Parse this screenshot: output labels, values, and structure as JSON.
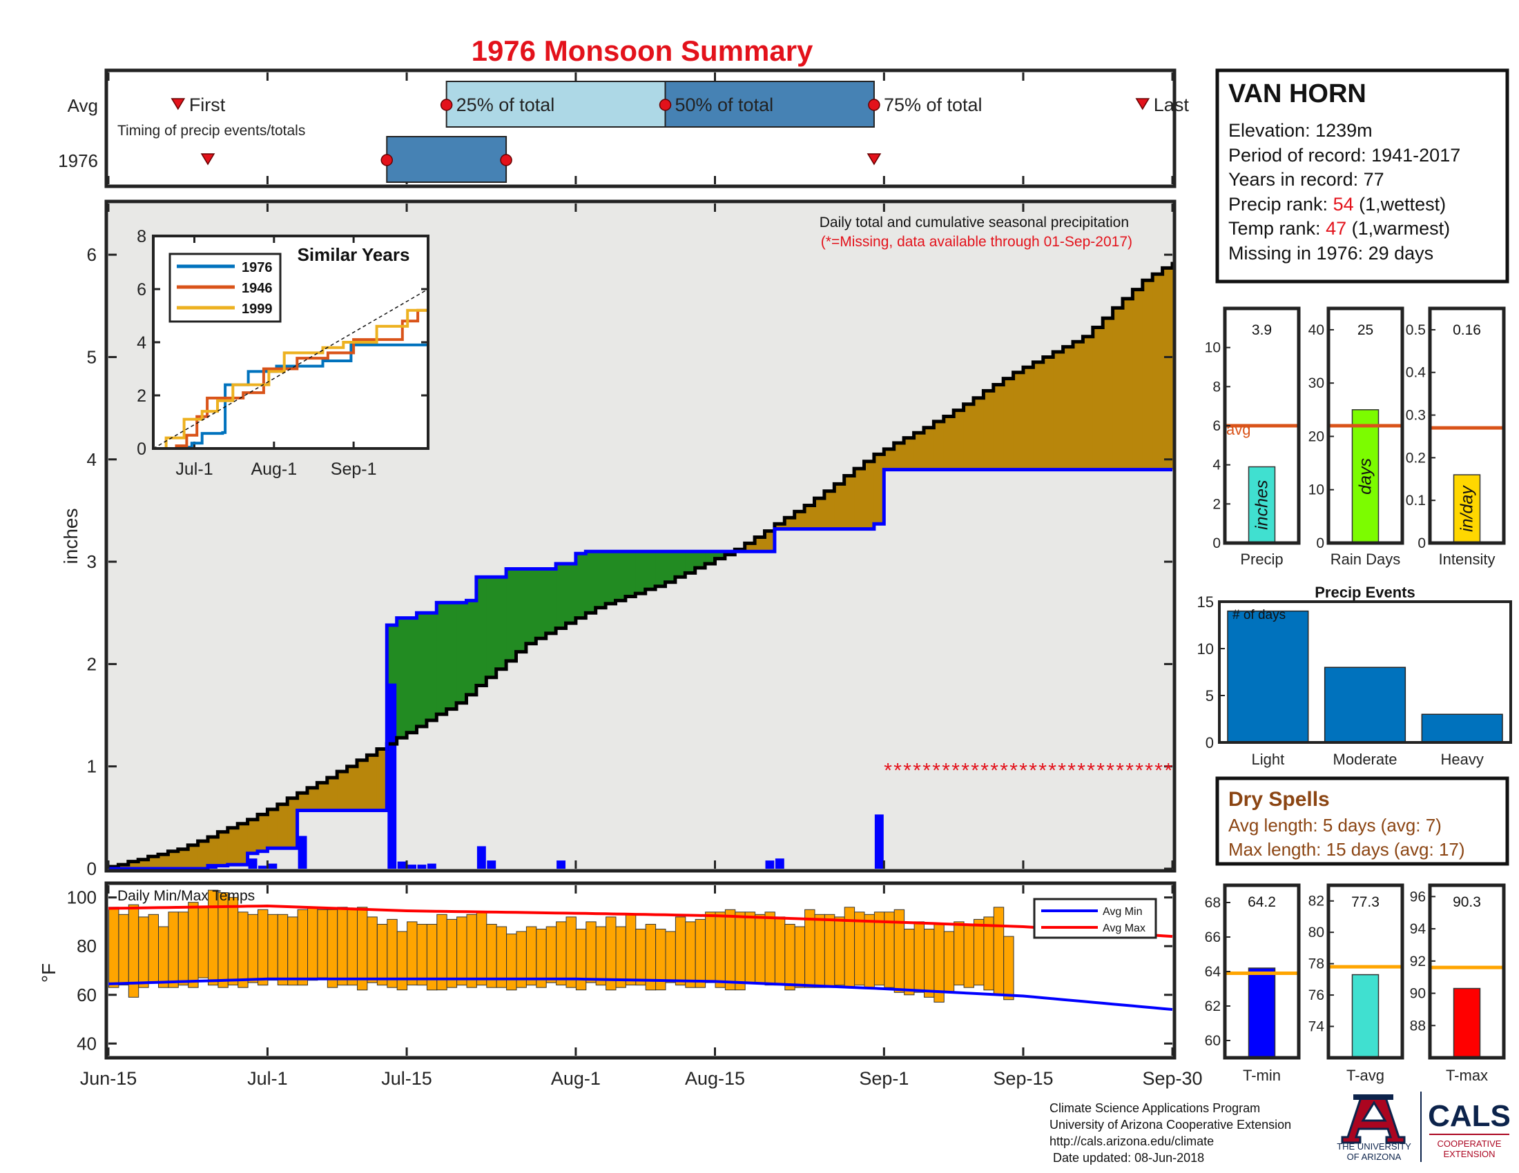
{
  "title": "1976 Monsoon Summary",
  "colors": {
    "title": "#e3121b",
    "frame": "#222222",
    "event_marker": "#e3121b",
    "box_avg_light": "#add8e6",
    "box_dark": "#4682b4",
    "cum_current": "#000000",
    "cum_avg": "#0000ff",
    "above_fill": "#b8860b",
    "below_fill": "#228b22",
    "base_fill": "#e8e8e6",
    "daily_bar": "#0000ff",
    "missing": "#e3121b",
    "temp_bar": "#ffa500",
    "avg_min": "#0000ff",
    "avg_max": "#ff0000",
    "dry_spell": "#8b4513",
    "avg_line": "#d95319",
    "series_1976": "#0072bd",
    "series_1946": "#d95319",
    "series_1999": "#edb120",
    "precip_bar": "#40e0d0",
    "rain_days_bar": "#7cfc00",
    "intensity_bar": "#ffd700",
    "events_bar": "#0072bd",
    "tmin_bar": "#0000ff",
    "tavg_bar": "#40e0d0",
    "tmax_bar": "#ff0000",
    "temp_avg_line": "#ffa500",
    "ua_red": "#ab0520",
    "ua_navy": "#0c234b"
  },
  "timing": {
    "label": "Timing of precip events/totals",
    "row_avg": "Avg",
    "row_year": "1976",
    "first_label": "First",
    "p25_label": "25% of total",
    "p50_label": "50% of total",
    "p75_label": "75% of total",
    "last_label": "Last",
    "avg": {
      "first": "2017-06-22",
      "p25": "2017-07-19",
      "p50": "2017-08-10",
      "p75": "2017-08-31",
      "last": "2017-09-27"
    },
    "year": {
      "first": "2017-06-25",
      "p25": "2017-07-13",
      "p50": "2017-07-25",
      "last": "2017-08-31"
    }
  },
  "main": {
    "ylabel": "inches",
    "note1": "Daily total and cumulative seasonal precipitation",
    "note2": "(*=Missing, data available through 01-Sep-2017)",
    "missing_marker": "******************************"
  },
  "inset": {
    "title": "Similar Years",
    "legend": [
      "1976",
      "1946",
      "1999"
    ]
  },
  "temps": {
    "title": "Daily Min/Max Temps",
    "ylabel": "°F",
    "legend_min": "Avg Min",
    "legend_max": "Avg Max"
  },
  "station": {
    "name": "VAN HORN",
    "elevation_label": "Elevation: ",
    "elevation": "1239m",
    "period_label": "Period of record: ",
    "period": "1941-2017",
    "years_label": "Years in record: ",
    "years": "77",
    "precip_rank_label": "Precip rank: ",
    "precip_rank": "54",
    "precip_rank_note": " (1,wettest)",
    "temp_rank_label": "Temp rank: ",
    "temp_rank": "47",
    "temp_rank_note": " (1,warmest)",
    "missing_label": "Missing in 1976: ",
    "missing": "29 days"
  },
  "mini_precip": {
    "avg_label": "avg",
    "panels": [
      {
        "label": "Precip",
        "unit": "inches",
        "value_text": "3.9",
        "ylim": [
          0,
          12
        ],
        "ticks": [
          "0",
          "2",
          "4",
          "6",
          "8",
          "10"
        ],
        "tick_vals": [
          0,
          2,
          4,
          6,
          8,
          10
        ],
        "avg": 6
      },
      {
        "label": "Rain Days",
        "unit": "days",
        "value_text": "25",
        "ylim": [
          0,
          44
        ],
        "ticks": [
          "0",
          "10",
          "20",
          "30",
          "40"
        ],
        "tick_vals": [
          0,
          10,
          20,
          30,
          40
        ],
        "avg": 22
      },
      {
        "label": "Intensity",
        "unit": "in/day",
        "value_text": "0.16",
        "ylim": [
          0,
          0.55
        ],
        "ticks": [
          "0",
          "0.1",
          "0.2",
          "0.3",
          "0.4",
          "0.5"
        ],
        "tick_vals": [
          0,
          0.1,
          0.2,
          0.3,
          0.4,
          0.5
        ],
        "avg": 0.27
      }
    ]
  },
  "precip_events": {
    "title": "Precip Events",
    "ylabel": "# of days",
    "ticks": [
      "0",
      "5",
      "10",
      "15"
    ]
  },
  "dry_spells": {
    "title": "Dry Spells",
    "avg_length": "Avg length: 5 days (avg: 7)",
    "max_length": "Max length: 15 days (avg: 17)"
  },
  "mini_temps": {
    "panels": [
      {
        "label": "T-min",
        "value_text": "64.2",
        "ylim": [
          59,
          69
        ],
        "ticks": [
          "60",
          "62",
          "64",
          "66",
          "68"
        ],
        "tick_vals": [
          60,
          62,
          64,
          66,
          68
        ],
        "avg": 63.9
      },
      {
        "label": "T-avg",
        "value_text": "77.3",
        "ylim": [
          72,
          83
        ],
        "ticks": [
          "74",
          "76",
          "78",
          "80",
          "82"
        ],
        "tick_vals": [
          74,
          76,
          78,
          80,
          82
        ],
        "avg": 77.8
      },
      {
        "label": "T-max",
        "value_text": "90.3",
        "ylim": [
          86,
          96.7
        ],
        "ticks": [
          "88",
          "90",
          "92",
          "94",
          "96"
        ],
        "tick_vals": [
          88,
          90,
          92,
          94,
          96
        ],
        "avg": 91.6
      }
    ]
  },
  "footer": {
    "line1": "Climate Science Applications Program",
    "line2": "University of Arizona Cooperative Extension",
    "line3": "http://cals.arizona.edu/climate",
    "line4": " Date updated: 08-Jun-2018"
  },
  "logo": {
    "ua_line1": "THE UNIVERSITY",
    "ua_line2": "OF ARIZONA",
    "cals": "CALS",
    "coop1": "COOPERATIVE",
    "coop2": "EXTENSION"
  },
  "chart_data": [
    {
      "type": "area",
      "title": "",
      "xlabel": "",
      "ylabel": "inches",
      "x_ticks": [
        "Jun-15",
        "Jul-1",
        "Jul-15",
        "Aug-1",
        "Aug-15",
        "Sep-1",
        "Sep-15",
        "Sep-30"
      ],
      "x_range": [
        "2017-06-15",
        "2017-09-30"
      ],
      "ylim": [
        0,
        6.5
      ],
      "y_ticks": [
        0,
        1,
        2,
        3,
        4,
        5,
        6
      ],
      "series": [
        {
          "name": "cumulative avg",
          "x": [
            "2017-06-15",
            "2017-06-22",
            "2017-06-29",
            "2017-07-06",
            "2017-07-13",
            "2017-07-20",
            "2017-07-27",
            "2017-08-03",
            "2017-08-10",
            "2017-08-17",
            "2017-08-24",
            "2017-08-31",
            "2017-09-07",
            "2017-09-14",
            "2017-09-21",
            "2017-09-27",
            "2017-09-30"
          ],
          "values": [
            0.02,
            0.19,
            0.48,
            0.84,
            1.22,
            1.62,
            2.2,
            2.55,
            2.8,
            3.12,
            3.55,
            4.05,
            4.42,
            4.85,
            5.2,
            5.75,
            5.93
          ]
        },
        {
          "name": "cumulative 1976",
          "x": [
            "2017-06-15",
            "2017-06-24",
            "2017-06-25",
            "2017-06-27",
            "2017-06-29",
            "2017-06-30",
            "2017-07-01",
            "2017-07-04",
            "2017-07-12",
            "2017-07-13",
            "2017-07-14",
            "2017-07-16",
            "2017-07-18",
            "2017-07-21",
            "2017-07-22",
            "2017-07-25",
            "2017-07-30",
            "2017-08-01",
            "2017-08-02",
            "2017-08-20",
            "2017-08-21",
            "2017-08-31",
            "2017-09-01",
            "2017-09-30"
          ],
          "values": [
            0,
            0,
            0.03,
            0.04,
            0.15,
            0.17,
            0.2,
            0.57,
            0.57,
            2.38,
            2.45,
            2.5,
            2.6,
            2.62,
            2.85,
            2.93,
            2.98,
            3.08,
            3.1,
            3.1,
            3.32,
            3.37,
            3.9,
            3.9
          ]
        },
        {
          "name": "daily 1976",
          "x": [
            "2017-06-25",
            "2017-06-29",
            "2017-06-30",
            "2017-07-01",
            "2017-07-04",
            "2017-07-13",
            "2017-07-14",
            "2017-07-15",
            "2017-07-16",
            "2017-07-17",
            "2017-07-22",
            "2017-07-23",
            "2017-07-30",
            "2017-08-20",
            "2017-08-21",
            "2017-08-31"
          ],
          "values": [
            0.03,
            0.1,
            0.03,
            0.05,
            0.32,
            1.81,
            0.07,
            0.04,
            0.04,
            0.05,
            0.22,
            0.08,
            0.08,
            0.08,
            0.1,
            0.53
          ]
        },
        {
          "name": "missing",
          "x_range": [
            "2017-09-01",
            "2017-09-30"
          ],
          "value": 1
        }
      ]
    },
    {
      "type": "line",
      "title": "Similar Years",
      "x_ticks": [
        "Jul-1",
        "Aug-1",
        "Sep-1"
      ],
      "ylim": [
        0,
        8
      ],
      "y_ticks": [
        0,
        2,
        4,
        6,
        8
      ],
      "series": [
        {
          "name": "1976",
          "x": [
            "2017-06-15",
            "2017-06-25",
            "2017-06-30",
            "2017-07-04",
            "2017-07-12",
            "2017-07-13",
            "2017-07-22",
            "2017-08-02",
            "2017-08-20",
            "2017-08-31",
            "2017-09-30"
          ],
          "values": [
            0,
            0.05,
            0.2,
            0.57,
            0.6,
            2.4,
            2.9,
            3.1,
            3.3,
            3.9,
            3.9
          ]
        },
        {
          "name": "1946",
          "x": [
            "2017-06-15",
            "2017-06-24",
            "2017-06-28",
            "2017-07-02",
            "2017-07-06",
            "2017-07-20",
            "2017-07-28",
            "2017-08-10",
            "2017-08-22",
            "2017-09-01",
            "2017-09-20",
            "2017-09-26",
            "2017-09-30"
          ],
          "values": [
            0,
            0.1,
            0.5,
            1.2,
            1.9,
            2.1,
            3.0,
            3.4,
            3.6,
            4.1,
            4.8,
            5.2,
            6.2
          ]
        },
        {
          "name": "1999",
          "x": [
            "2017-06-15",
            "2017-06-20",
            "2017-06-27",
            "2017-07-04",
            "2017-07-10",
            "2017-07-16",
            "2017-07-30",
            "2017-08-05",
            "2017-08-20",
            "2017-08-28",
            "2017-09-10",
            "2017-09-22",
            "2017-09-30"
          ],
          "values": [
            0,
            0.4,
            1.1,
            1.4,
            1.8,
            2.4,
            2.9,
            3.6,
            3.8,
            4.0,
            4.6,
            5.2,
            5.3
          ]
        },
        {
          "name": "avg",
          "x": [
            "2017-06-15",
            "2017-09-30"
          ],
          "values": [
            0,
            6.0
          ]
        }
      ]
    },
    {
      "type": "bar",
      "title": "Daily Min/Max Temps",
      "ylabel": "°F",
      "ylim": [
        35,
        105
      ],
      "y_ticks": [
        40,
        60,
        80,
        100
      ],
      "daily_range": {
        "x_start": "2017-06-15",
        "min": [
          63,
          64,
          59,
          63,
          65,
          63,
          63,
          64,
          63,
          67,
          64,
          63,
          64,
          63,
          65,
          64,
          66,
          64,
          64,
          64,
          66,
          67,
          63,
          64,
          64,
          62,
          65,
          64,
          63,
          62,
          64,
          64,
          62,
          62,
          63,
          64,
          63,
          64,
          63,
          63,
          62,
          63,
          64,
          63,
          65,
          64,
          63,
          62,
          65,
          64,
          62,
          63,
          64,
          64,
          62,
          62,
          65,
          64,
          63,
          63,
          65,
          63,
          62,
          62,
          65,
          65,
          64,
          64,
          62,
          63,
          63,
          63,
          63,
          64,
          63,
          64,
          63,
          64,
          63,
          61,
          60,
          61,
          59,
          57,
          61,
          64,
          63,
          64,
          62,
          60,
          58
        ],
        "max": [
          96,
          93,
          97,
          92,
          93,
          88,
          94,
          94,
          98,
          96,
          103,
          102,
          100,
          94,
          93,
          95,
          93,
          93,
          92,
          95,
          96,
          95,
          95,
          96,
          95,
          96,
          92,
          89,
          91,
          86,
          90,
          89,
          89,
          93,
          91,
          92,
          93,
          94,
          89,
          88,
          85,
          86,
          88,
          87,
          88,
          90,
          92,
          87,
          90,
          88,
          92,
          88,
          93,
          87,
          89,
          87,
          86,
          92,
          90,
          91,
          94,
          94,
          95,
          94,
          94,
          93,
          94,
          92,
          89,
          88,
          95,
          93,
          93,
          92,
          96,
          94,
          93,
          94,
          94,
          95,
          87,
          90,
          87,
          89,
          86,
          90,
          89,
          91,
          92,
          96,
          84
        ]
      },
      "avg_min": {
        "x": [
          "2017-06-15",
          "2017-07-01",
          "2017-08-01",
          "2017-08-15",
          "2017-09-01",
          "2017-09-15",
          "2017-09-30"
        ],
        "values": [
          64.5,
          66.5,
          66.5,
          65.5,
          62.5,
          59.5,
          54
        ]
      },
      "avg_max": {
        "x": [
          "2017-06-15",
          "2017-07-01",
          "2017-07-15",
          "2017-08-01",
          "2017-08-15",
          "2017-09-01",
          "2017-09-15",
          "2017-09-30"
        ],
        "values": [
          95.5,
          96.5,
          94.5,
          93.5,
          92.5,
          90,
          88,
          84
        ]
      }
    },
    {
      "type": "bar",
      "title": "Precip Events",
      "ylabel": "# of days",
      "categories": [
        "Light",
        "Moderate",
        "Heavy"
      ],
      "values": [
        14,
        8,
        3
      ],
      "ylim": [
        0,
        15
      ]
    },
    {
      "type": "bar",
      "title": "",
      "categories": [
        "Precip",
        "Rain Days",
        "Intensity"
      ],
      "values": [
        3.9,
        25,
        0.16
      ],
      "averages": [
        6,
        22,
        0.27
      ]
    },
    {
      "type": "bar",
      "title": "",
      "categories": [
        "T-min",
        "T-avg",
        "T-max"
      ],
      "values": [
        64.2,
        77.3,
        90.3
      ],
      "averages": [
        63.9,
        77.8,
        91.6
      ]
    }
  ]
}
